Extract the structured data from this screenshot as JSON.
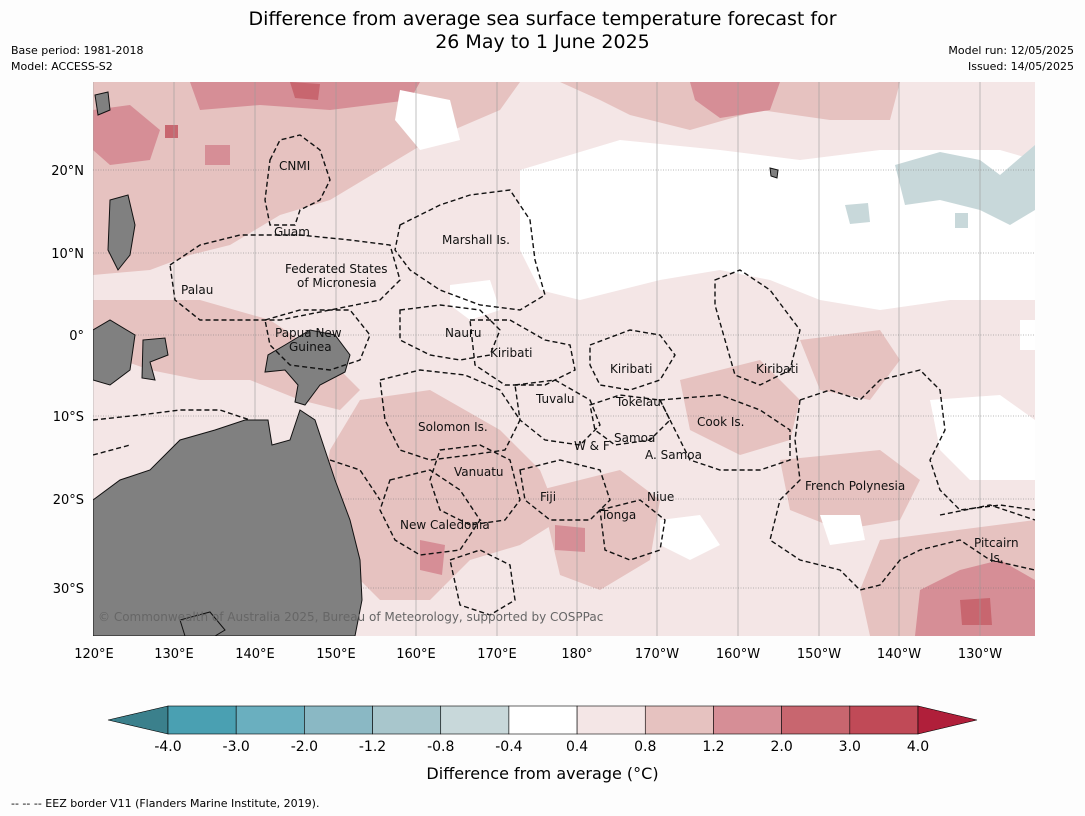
{
  "title_line1": "Difference from average sea surface temperature forecast for",
  "title_line2": "26 May to 1 June 2025",
  "meta_left": {
    "base_period": "Base period: 1981-2018",
    "model": "Model: ACCESS-S2"
  },
  "meta_right": {
    "model_run": "Model run: 12/05/2025",
    "issued": "Issued: 14/05/2025"
  },
  "copyright": "© Commonwealth of Australia 2025, Bureau of Meteorology, supported by COSPPac",
  "lon_ticks": [
    "120°E",
    "130°E",
    "140°E",
    "150°E",
    "160°E",
    "170°E",
    "180°",
    "170°W",
    "160°W",
    "150°W",
    "140°W",
    "130°W"
  ],
  "lat_ticks": [
    "20°N",
    "10°N",
    "0°",
    "10°S",
    "20°S",
    "30°S"
  ],
  "region_labels": [
    {
      "text": "CNMI"
    },
    {
      "text": "Guam"
    },
    {
      "text": "Marshall Is."
    },
    {
      "text": "Federated States"
    },
    {
      "text": "of Micronesia"
    },
    {
      "text": "Palau"
    },
    {
      "text": "Papua New"
    },
    {
      "text": "Guinea"
    },
    {
      "text": "Nauru"
    },
    {
      "text": "Kiribati"
    },
    {
      "text": "Kiribati"
    },
    {
      "text": "Kiribati"
    },
    {
      "text": "Tuvalu"
    },
    {
      "text": "Tokelau"
    },
    {
      "text": "Solomon Is."
    },
    {
      "text": "Samoa"
    },
    {
      "text": "W & F"
    },
    {
      "text": "A. Samoa"
    },
    {
      "text": "Cook Is."
    },
    {
      "text": "Vanuatu"
    },
    {
      "text": "Fiji"
    },
    {
      "text": "Niue"
    },
    {
      "text": "Tonga"
    },
    {
      "text": "French Polynesia"
    },
    {
      "text": "New Caledonia"
    },
    {
      "text": "Pitcairn"
    },
    {
      "text": "Is."
    }
  ],
  "colorbar": {
    "ticks": [
      "-4.0",
      "-3.0",
      "-2.0",
      "-1.2",
      "-0.8",
      "-0.4",
      "0.4",
      "0.8",
      "1.2",
      "2.0",
      "3.0",
      "4.0"
    ],
    "colors": [
      "#3b808c",
      "#4aa0b2",
      "#6aafbf",
      "#8ab8c4",
      "#a8c6cc",
      "#c8d8da",
      "#ffffff",
      "#f4e6e6",
      "#e6c2c0",
      "#d68e96",
      "#c8666f",
      "#c04a57",
      "#b01f3a"
    ],
    "label": "Difference from average (°C)"
  },
  "eez_note": "--  --  -- EEZ border V11 (Flanders Marine Institute, 2019)."
}
